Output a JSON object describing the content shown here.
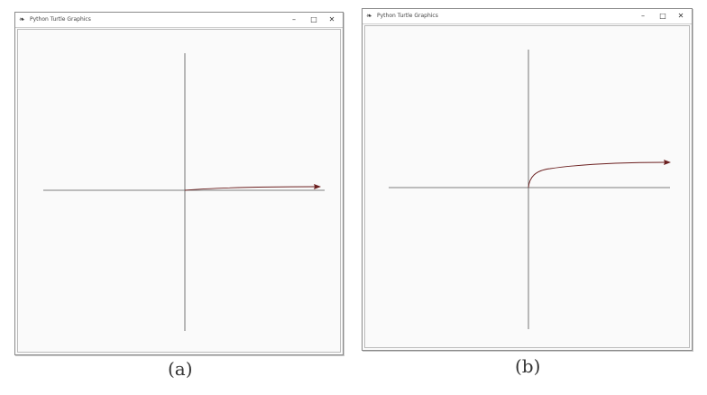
{
  "windows": [
    {
      "title": "Python Turtle Graphics",
      "app_icon": "feather-icon",
      "controls": {
        "minimize": "–",
        "maximize": "□",
        "close": "✕"
      },
      "caption": "(a)"
    },
    {
      "title": "Python Turtle Graphics",
      "app_icon": "feather-icon",
      "controls": {
        "minimize": "–",
        "maximize": "□",
        "close": "✕"
      },
      "caption": "(b)"
    }
  ],
  "colors": {
    "axis": "#555555",
    "curve": "#6b1f1f",
    "frame": "#8a8a8a"
  }
}
